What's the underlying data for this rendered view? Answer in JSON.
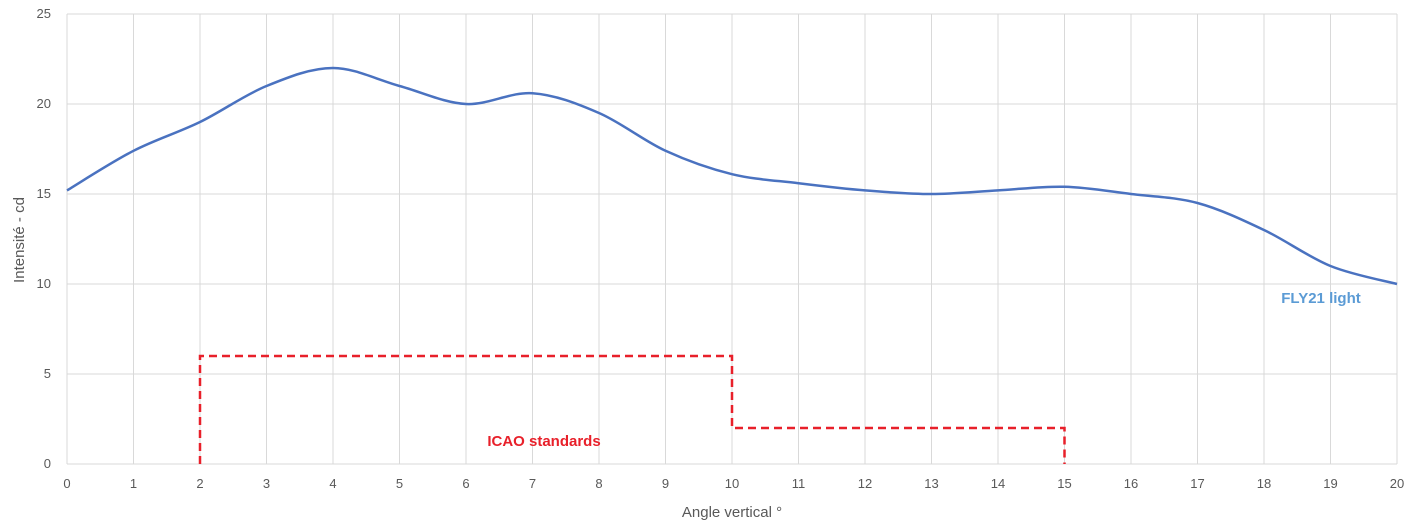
{
  "chart_data": {
    "type": "line",
    "title": "",
    "xlabel": "Angle vertical °",
    "ylabel": "Intensité - cd",
    "xlim": [
      0,
      20
    ],
    "ylim": [
      0,
      25
    ],
    "x_ticks": [
      "0",
      "1",
      "2",
      "3",
      "4",
      "5",
      "6",
      "7",
      "8",
      "9",
      "10",
      "11",
      "12",
      "13",
      "14",
      "15",
      "16",
      "17",
      "18",
      "19",
      "20"
    ],
    "y_ticks": [
      "0",
      "5",
      "10",
      "15",
      "20",
      "25"
    ],
    "grid": true,
    "series": [
      {
        "name": "FLY21 light",
        "color": "#4A72C0",
        "style": "solid-smooth",
        "x": [
          0,
          1,
          2,
          3,
          4,
          5,
          6,
          7,
          8,
          9,
          10,
          11,
          12,
          13,
          14,
          15,
          16,
          17,
          18,
          19,
          20
        ],
        "y": [
          15.2,
          17.4,
          19.0,
          21.0,
          22.0,
          21.0,
          20.0,
          20.6,
          19.5,
          17.4,
          16.1,
          15.6,
          15.2,
          15.0,
          15.2,
          15.4,
          15.0,
          14.5,
          13.0,
          11.0,
          10.0
        ]
      },
      {
        "name": "ICAO standards",
        "color": "#E8202A",
        "style": "dashed-step",
        "x": [
          2,
          2,
          10,
          10,
          15,
          15
        ],
        "y": [
          0,
          6,
          6,
          2,
          2,
          0
        ]
      }
    ],
    "annotations": [
      {
        "text": "FLY21 light",
        "color": "#5B9BD5"
      },
      {
        "text": "ICAO standards",
        "color": "#E8202A"
      }
    ]
  }
}
